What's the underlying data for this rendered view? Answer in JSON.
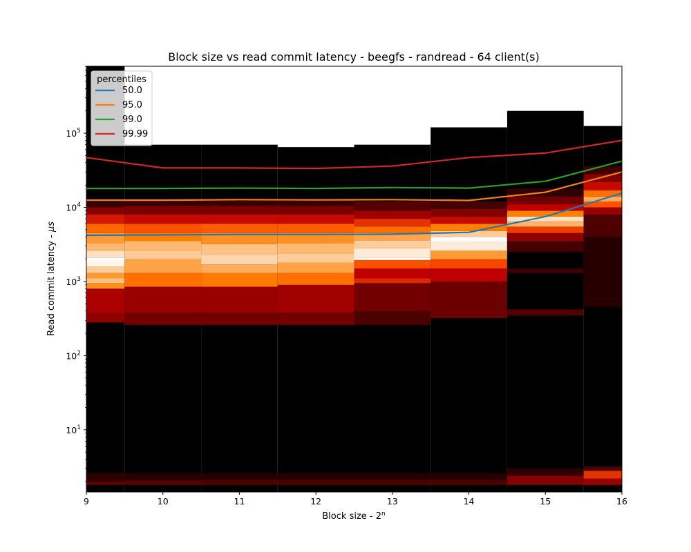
{
  "chart_data": {
    "type": "heatmap",
    "title": "Block size vs read commit latency - beegfs - randread - 64 client(s)",
    "xlabel": {
      "base": "Block size - 2",
      "sup": "n"
    },
    "ylabel": {
      "base": "Read commit latency - ",
      "mu": "μs"
    },
    "x_ticks": [
      9,
      10,
      11,
      12,
      13,
      14,
      15,
      16
    ],
    "xlim": [
      9,
      16
    ],
    "yscale": "log",
    "ylim": [
      1.45,
      800000
    ],
    "y_ticks": [
      {
        "value": 10,
        "exp": "1"
      },
      {
        "value": 100,
        "exp": "2"
      },
      {
        "value": 1000,
        "exp": "3"
      },
      {
        "value": 10000,
        "exp": "4"
      },
      {
        "value": 100000,
        "exp": "5"
      }
    ],
    "legend": {
      "title": "percentiles",
      "position": "upper-left"
    },
    "series": [
      {
        "name": "50.0",
        "color": "#1f77b4",
        "x": [
          9,
          10,
          11,
          12,
          13,
          14,
          15,
          16
        ],
        "y": [
          4200,
          4250,
          4300,
          4300,
          4350,
          4600,
          7500,
          15500
        ]
      },
      {
        "name": "95.0",
        "color": "#ff7f0e",
        "x": [
          9,
          10,
          11,
          12,
          13,
          14,
          15,
          16
        ],
        "y": [
          12500,
          12500,
          12700,
          12600,
          12700,
          12400,
          16000,
          30000
        ]
      },
      {
        "name": "99.0",
        "color": "#2ca02c",
        "x": [
          9,
          10,
          11,
          12,
          13,
          14,
          15,
          16
        ],
        "y": [
          18000,
          18000,
          18200,
          18000,
          18500,
          18200,
          22500,
          42000
        ]
      },
      {
        "name": "99.99",
        "color": "#d62728",
        "x": [
          9,
          10,
          11,
          12,
          13,
          14,
          15,
          16
        ],
        "y": [
          47000,
          34000,
          34000,
          33500,
          36000,
          47000,
          54000,
          80000
        ]
      }
    ],
    "heatmap": {
      "colormap": "gist_heat",
      "background": "#000000",
      "columns": [
        {
          "x0": 8.5,
          "x1": 9.5,
          "max": 800000,
          "bands": [
            {
              "y0": 1.8,
              "y1": 2.0,
              "i": 0.25
            },
            {
              "y0": 2.0,
              "y1": 2.6,
              "i": 0.12
            },
            {
              "y0": 280,
              "y1": 380,
              "i": 0.38
            },
            {
              "y0": 380,
              "y1": 800,
              "i": 0.45
            },
            {
              "y0": 800,
              "y1": 950,
              "i": 0.78
            },
            {
              "y0": 950,
              "y1": 1100,
              "i": 0.88
            },
            {
              "y0": 1100,
              "y1": 1300,
              "i": 0.8
            },
            {
              "y0": 1300,
              "y1": 1600,
              "i": 0.9
            },
            {
              "y0": 1600,
              "y1": 1900,
              "i": 0.98
            },
            {
              "y0": 1900,
              "y1": 2100,
              "i": 1.0
            },
            {
              "y0": 2100,
              "y1": 2600,
              "i": 0.94
            },
            {
              "y0": 2600,
              "y1": 3300,
              "i": 0.86
            },
            {
              "y0": 3300,
              "y1": 4500,
              "i": 0.8
            },
            {
              "y0": 4500,
              "y1": 6000,
              "i": 0.7
            },
            {
              "y0": 6000,
              "y1": 8000,
              "i": 0.55
            },
            {
              "y0": 8000,
              "y1": 10000,
              "i": 0.35
            },
            {
              "y0": 10000,
              "y1": 12000,
              "i": 0.15
            }
          ]
        },
        {
          "x0": 9.5,
          "x1": 10.5,
          "max": 70000,
          "bands": [
            {
              "y0": 1.8,
              "y1": 2.1,
              "i": 0.22
            },
            {
              "y0": 2.1,
              "y1": 2.6,
              "i": 0.1
            },
            {
              "y0": 260,
              "y1": 380,
              "i": 0.3
            },
            {
              "y0": 380,
              "y1": 850,
              "i": 0.4
            },
            {
              "y0": 850,
              "y1": 1300,
              "i": 0.72
            },
            {
              "y0": 1300,
              "y1": 2000,
              "i": 0.82
            },
            {
              "y0": 2000,
              "y1": 2600,
              "i": 0.9
            },
            {
              "y0": 2600,
              "y1": 3500,
              "i": 0.86
            },
            {
              "y0": 3500,
              "y1": 4500,
              "i": 0.75
            },
            {
              "y0": 4500,
              "y1": 6000,
              "i": 0.66
            },
            {
              "y0": 6000,
              "y1": 8000,
              "i": 0.52
            },
            {
              "y0": 8000,
              "y1": 10500,
              "i": 0.32
            },
            {
              "y0": 10500,
              "y1": 12500,
              "i": 0.14
            }
          ]
        },
        {
          "x0": 10.5,
          "x1": 11.5,
          "max": 70000,
          "bands": [
            {
              "y0": 1.8,
              "y1": 2.1,
              "i": 0.2
            },
            {
              "y0": 2.1,
              "y1": 2.6,
              "i": 0.1
            },
            {
              "y0": 260,
              "y1": 380,
              "i": 0.3
            },
            {
              "y0": 380,
              "y1": 850,
              "i": 0.4
            },
            {
              "y0": 850,
              "y1": 1300,
              "i": 0.74
            },
            {
              "y0": 1300,
              "y1": 1700,
              "i": 0.84
            },
            {
              "y0": 1700,
              "y1": 2300,
              "i": 0.92
            },
            {
              "y0": 2300,
              "y1": 3200,
              "i": 0.88
            },
            {
              "y0": 3200,
              "y1": 4500,
              "i": 0.78
            },
            {
              "y0": 4500,
              "y1": 6000,
              "i": 0.68
            },
            {
              "y0": 6000,
              "y1": 8000,
              "i": 0.52
            },
            {
              "y0": 8000,
              "y1": 10500,
              "i": 0.32
            },
            {
              "y0": 10500,
              "y1": 12500,
              "i": 0.14
            }
          ]
        },
        {
          "x0": 11.5,
          "x1": 12.5,
          "max": 65000,
          "bands": [
            {
              "y0": 1.8,
              "y1": 2.1,
              "i": 0.2
            },
            {
              "y0": 2.1,
              "y1": 2.6,
              "i": 0.1
            },
            {
              "y0": 260,
              "y1": 380,
              "i": 0.3
            },
            {
              "y0": 380,
              "y1": 900,
              "i": 0.42
            },
            {
              "y0": 900,
              "y1": 1300,
              "i": 0.72
            },
            {
              "y0": 1300,
              "y1": 1800,
              "i": 0.82
            },
            {
              "y0": 1800,
              "y1": 2400,
              "i": 0.9
            },
            {
              "y0": 2400,
              "y1": 3300,
              "i": 0.86
            },
            {
              "y0": 3300,
              "y1": 4500,
              "i": 0.78
            },
            {
              "y0": 4500,
              "y1": 6000,
              "i": 0.68
            },
            {
              "y0": 6000,
              "y1": 8000,
              "i": 0.52
            },
            {
              "y0": 8000,
              "y1": 10500,
              "i": 0.32
            },
            {
              "y0": 10500,
              "y1": 12500,
              "i": 0.14
            }
          ]
        },
        {
          "x0": 12.5,
          "x1": 13.5,
          "max": 70000,
          "bands": [
            {
              "y0": 1.8,
              "y1": 2.1,
              "i": 0.2
            },
            {
              "y0": 2.1,
              "y1": 2.6,
              "i": 0.1
            },
            {
              "y0": 260,
              "y1": 400,
              "i": 0.2
            },
            {
              "y0": 400,
              "y1": 950,
              "i": 0.3
            },
            {
              "y0": 950,
              "y1": 1100,
              "i": 0.58
            },
            {
              "y0": 1100,
              "y1": 1500,
              "i": 0.5
            },
            {
              "y0": 1500,
              "y1": 1950,
              "i": 0.66
            },
            {
              "y0": 1950,
              "y1": 2100,
              "i": 1.0
            },
            {
              "y0": 2100,
              "y1": 2800,
              "i": 0.96
            },
            {
              "y0": 2800,
              "y1": 3600,
              "i": 0.9
            },
            {
              "y0": 3600,
              "y1": 4500,
              "i": 0.82
            },
            {
              "y0": 4500,
              "y1": 5500,
              "i": 0.72
            },
            {
              "y0": 5500,
              "y1": 7000,
              "i": 0.6
            },
            {
              "y0": 7000,
              "y1": 9000,
              "i": 0.42
            },
            {
              "y0": 9000,
              "y1": 12000,
              "i": 0.22
            }
          ]
        },
        {
          "x0": 13.5,
          "x1": 14.5,
          "max": 120000,
          "bands": [
            {
              "y0": 1.8,
              "y1": 2.1,
              "i": 0.2
            },
            {
              "y0": 2.1,
              "y1": 2.6,
              "i": 0.1
            },
            {
              "y0": 320,
              "y1": 1000,
              "i": 0.28
            },
            {
              "y0": 1000,
              "y1": 1500,
              "i": 0.5
            },
            {
              "y0": 1500,
              "y1": 2000,
              "i": 0.64
            },
            {
              "y0": 2000,
              "y1": 2600,
              "i": 0.8
            },
            {
              "y0": 2600,
              "y1": 3400,
              "i": 0.96
            },
            {
              "y0": 3400,
              "y1": 4000,
              "i": 1.0
            },
            {
              "y0": 4000,
              "y1": 4800,
              "i": 0.9
            },
            {
              "y0": 4800,
              "y1": 6000,
              "i": 0.75
            },
            {
              "y0": 6000,
              "y1": 7500,
              "i": 0.52
            },
            {
              "y0": 7500,
              "y1": 9500,
              "i": 0.34
            },
            {
              "y0": 9500,
              "y1": 12000,
              "i": 0.18
            }
          ]
        },
        {
          "x0": 14.5,
          "x1": 15.5,
          "max": 200000,
          "bands": [
            {
              "y0": 1.8,
              "y1": 2.4,
              "i": 0.34
            },
            {
              "y0": 2.4,
              "y1": 3.0,
              "i": 0.12
            },
            {
              "y0": 350,
              "y1": 420,
              "i": 0.22
            },
            {
              "y0": 1300,
              "y1": 1500,
              "i": 0.16
            },
            {
              "y0": 2500,
              "y1": 3500,
              "i": 0.18
            },
            {
              "y0": 3500,
              "y1": 4500,
              "i": 0.38
            },
            {
              "y0": 4500,
              "y1": 5500,
              "i": 0.62
            },
            {
              "y0": 5500,
              "y1": 6500,
              "i": 0.85
            },
            {
              "y0": 6500,
              "y1": 7500,
              "i": 0.94
            },
            {
              "y0": 7500,
              "y1": 9000,
              "i": 0.75
            },
            {
              "y0": 9000,
              "y1": 11000,
              "i": 0.5
            },
            {
              "y0": 11000,
              "y1": 14000,
              "i": 0.3
            },
            {
              "y0": 14000,
              "y1": 18000,
              "i": 0.12
            }
          ]
        },
        {
          "x0": 15.5,
          "x1": 16.5,
          "max": 125000,
          "bands": [
            {
              "y0": 1.8,
              "y1": 2.2,
              "i": 0.4
            },
            {
              "y0": 2.2,
              "y1": 2.8,
              "i": 0.6
            },
            {
              "y0": 2.8,
              "y1": 3.2,
              "i": 0.2
            },
            {
              "y0": 450,
              "y1": 4000,
              "i": 0.1
            },
            {
              "y0": 4000,
              "y1": 8000,
              "i": 0.2
            },
            {
              "y0": 8000,
              "y1": 10000,
              "i": 0.4
            },
            {
              "y0": 10000,
              "y1": 12000,
              "i": 0.66
            },
            {
              "y0": 12000,
              "y1": 14000,
              "i": 0.84
            },
            {
              "y0": 14000,
              "y1": 17000,
              "i": 0.72
            },
            {
              "y0": 17000,
              "y1": 22000,
              "i": 0.52
            },
            {
              "y0": 22000,
              "y1": 28000,
              "i": 0.34
            },
            {
              "y0": 28000,
              "y1": 36000,
              "i": 0.16
            }
          ]
        }
      ]
    }
  }
}
